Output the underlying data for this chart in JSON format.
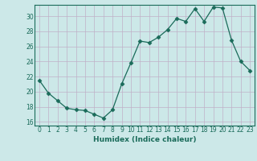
{
  "x": [
    0,
    1,
    2,
    3,
    4,
    5,
    6,
    7,
    8,
    9,
    10,
    11,
    12,
    13,
    14,
    15,
    16,
    17,
    18,
    19,
    20,
    21,
    22,
    23
  ],
  "y": [
    21.5,
    19.8,
    18.8,
    17.8,
    17.6,
    17.5,
    17.0,
    16.5,
    17.6,
    21.0,
    23.8,
    26.7,
    26.5,
    27.2,
    28.2,
    29.7,
    29.3,
    31.0,
    29.3,
    31.2,
    31.1,
    26.8,
    24.0,
    22.8
  ],
  "line_color": "#1a6b5a",
  "marker": "D",
  "marker_size": 2.5,
  "bg_color": "#cce8e8",
  "grid_color": "#c0b0c8",
  "xlabel": "Humidex (Indice chaleur)",
  "ylim": [
    15.5,
    31.5
  ],
  "yticks": [
    16,
    18,
    20,
    22,
    24,
    26,
    28,
    30
  ],
  "xlim": [
    -0.5,
    23.5
  ],
  "xticks": [
    0,
    1,
    2,
    3,
    4,
    5,
    6,
    7,
    8,
    9,
    10,
    11,
    12,
    13,
    14,
    15,
    16,
    17,
    18,
    19,
    20,
    21,
    22,
    23
  ],
  "tick_fontsize": 5.5,
  "xlabel_fontsize": 6.5
}
